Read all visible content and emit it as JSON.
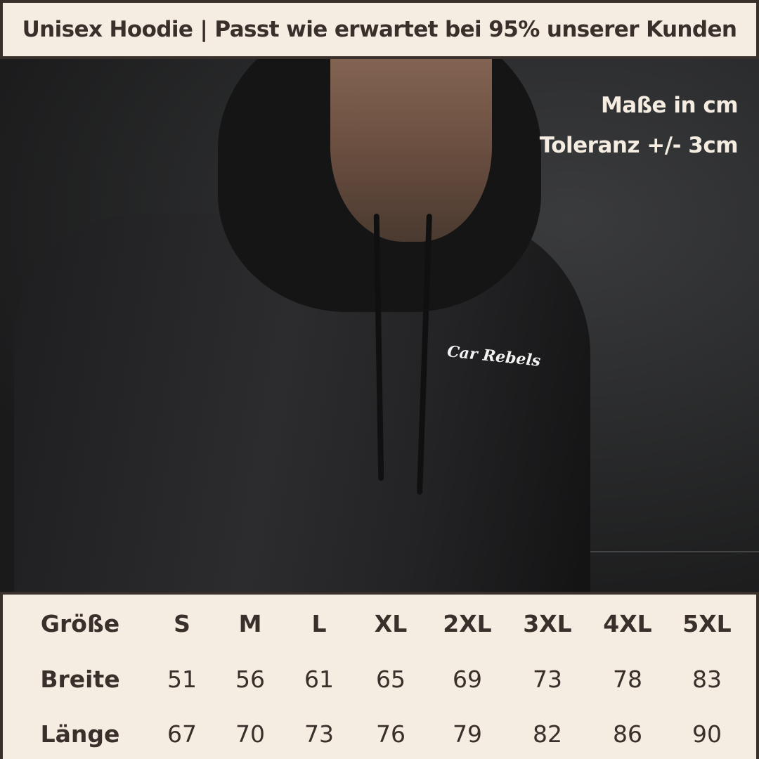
{
  "header": {
    "title": "Unisex Hoodie | Passt wie erwartet bei 95% unserer Kunden"
  },
  "photo": {
    "logo_text": "Car Rebels",
    "measure_unit": "Maße in cm",
    "tolerance": "Toleranz +/- 3cm"
  },
  "size_table": {
    "header_label": "Größe",
    "sizes": [
      "S",
      "M",
      "L",
      "XL",
      "2XL",
      "3XL",
      "4XL",
      "5XL"
    ],
    "rows": [
      {
        "label": "Breite",
        "values": [
          "51",
          "56",
          "61",
          "65",
          "69",
          "73",
          "78",
          "83"
        ]
      },
      {
        "label": "Länge",
        "values": [
          "67",
          "70",
          "73",
          "76",
          "79",
          "82",
          "86",
          "90"
        ]
      }
    ]
  },
  "colors": {
    "panel": "#f5ece2",
    "text": "#3a302b"
  }
}
